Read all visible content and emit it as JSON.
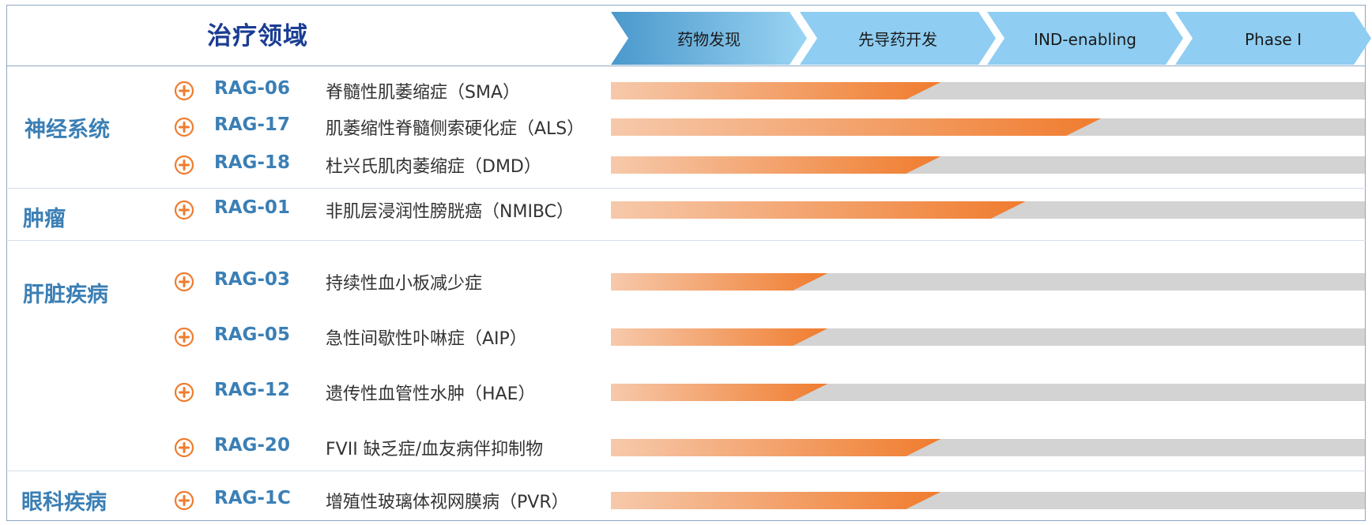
{
  "header": {
    "area_title": "治疗领域",
    "stages": [
      "药物发现",
      "先导药开发",
      "IND-enabling",
      "Phase I"
    ]
  },
  "chart_data": {
    "type": "bar",
    "x_axis": "stage",
    "stages": [
      "药物发现",
      "先导药开发",
      "IND-enabling",
      "Phase I"
    ],
    "xlim": [
      0,
      4
    ],
    "categories": [
      {
        "name": "神经系统",
        "programs": [
          {
            "code": "RAG-06",
            "indication": "脊髓性肌萎缩症（SMA）",
            "progress": 1.75
          },
          {
            "code": "RAG-17",
            "indication": "肌萎缩性脊髓侧索硬化症（ALS）",
            "progress": 2.6
          },
          {
            "code": "RAG-18",
            "indication": "杜兴氏肌肉萎缩症（DMD）",
            "progress": 1.75
          }
        ]
      },
      {
        "name": "肿瘤",
        "programs": [
          {
            "code": "RAG-01",
            "indication": "非肌层浸润性膀胱癌（NMIBC）",
            "progress": 2.2
          }
        ]
      },
      {
        "name": "肝脏疾病",
        "programs": [
          {
            "code": "RAG-03",
            "indication": "持续性血小板减少症",
            "progress": 1.15
          },
          {
            "code": "RAG-05",
            "indication": "急性间歇性卟啉症（AIP）",
            "progress": 1.15
          },
          {
            "code": "RAG-12",
            "indication": "遗传性血管性水肿（HAE）",
            "progress": 1.15
          },
          {
            "code": "RAG-20",
            "indication": "FVII 缺乏症/血友病伴抑制物",
            "progress": 1.75
          }
        ]
      },
      {
        "name": "眼科疾病",
        "programs": [
          {
            "code": "RAG-1C",
            "indication": "增殖性玻璃体视网膜病（PVR）",
            "progress": 1.75
          }
        ]
      }
    ]
  },
  "colors": {
    "accent_orange": "#f07c2e",
    "label_blue": "#3b7fb5",
    "title_blue": "#1b3d93",
    "track_gray": "#d3d3d3",
    "stage_blue": "#8fcdf2"
  }
}
